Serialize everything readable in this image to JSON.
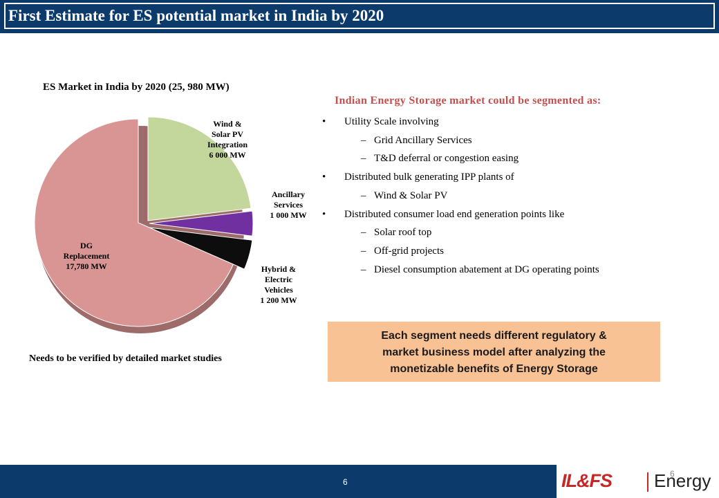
{
  "header": {
    "title": "First Estimate for ES potential market in India by 2020"
  },
  "chart_data": {
    "type": "pie",
    "title": "ES Market in India by 2020 (25, 980 MW)",
    "units": "MW",
    "slices": [
      {
        "name": "Wind & Solar PV Integration",
        "value": 6000,
        "label_lines": [
          "Wind &",
          "Solar PV",
          "Integration",
          "6 000 MW"
        ],
        "color": "#c3d69b"
      },
      {
        "name": "Ancillary Services",
        "value": 1000,
        "label_lines": [
          "Ancillary",
          "Services",
          "1 000 MW"
        ],
        "color": "#7030a0"
      },
      {
        "name": "Hybrid & Electric Vehicles",
        "value": 1200,
        "label_lines": [
          "Hybrid &",
          "Electric",
          "Vehicles",
          "1 200 MW"
        ],
        "color": "#0d0d0d"
      },
      {
        "name": "DG Replacement",
        "value": 17780,
        "label_lines": [
          "DG",
          "Replacement",
          "17,780 MW"
        ],
        "color": "#d99594"
      }
    ]
  },
  "note": "Needs to be verified by detailed market studies",
  "segments": {
    "heading": "Indian Energy Storage market  could be segmented  as:",
    "items": [
      {
        "level": 1,
        "text": "Utility Scale involving"
      },
      {
        "level": 2,
        "text": "Grid Ancillary Services"
      },
      {
        "level": 2,
        "text": " T&D deferral or congestion easing"
      },
      {
        "level": 1,
        "text": "Distributed bulk generating IPP plants of"
      },
      {
        "level": 2,
        "text": "Wind & Solar PV"
      },
      {
        "level": 1,
        "text": "Distributed consumer load end generation points like"
      },
      {
        "level": 2,
        "text": "Solar roof top"
      },
      {
        "level": 2,
        "text": "Off-grid projects"
      },
      {
        "level": 2,
        "text": "Diesel consumption abatement at DG operating points"
      }
    ],
    "bullet_symbol": "•",
    "dash_symbol": "–"
  },
  "callout": {
    "lines": [
      "Each segment needs different regulatory &",
      "market business model after analyzing the",
      "monetizable  benefits of Energy Storage"
    ]
  },
  "footer": {
    "page_number": "6",
    "page_number_right": "6",
    "logo_brand": "IL&FS",
    "logo_divider": "|",
    "logo_suffix": "Energy"
  }
}
